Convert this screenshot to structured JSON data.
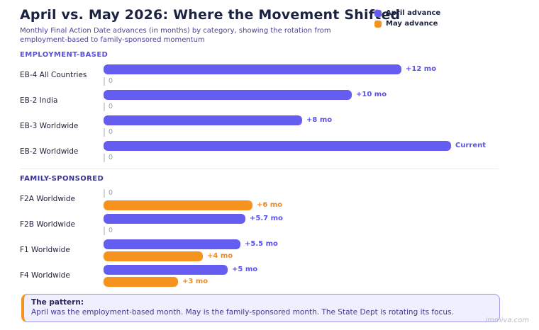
{
  "header": {
    "title": "April vs. May 2026: Where the Movement Shifted",
    "subtitle_line1": "Monthly Final Action Date advances (in months) by category, showing the rotation from",
    "subtitle_line2": "employment-based to family-sponsored momentum"
  },
  "legend": [
    {
      "label": "April advance",
      "color": "#655CF0"
    },
    {
      "label": "May advance",
      "color": "#F6921E"
    }
  ],
  "colors": {
    "april_bar": "#655CF0",
    "may_bar": "#F6921E",
    "april_value_text": "#5B51E8",
    "may_value_text": "#F6881C",
    "zero_text": "#9AA0A8",
    "title_text": "#1B2240",
    "subtitle_text": "#4A4499",
    "employment_section_text": "#5A4FE0",
    "family_section_text": "#3A338F",
    "callout_background": "#F0EFFE",
    "callout_border": "#A29DE8",
    "callout_accent": "#F6921E"
  },
  "chart_data": {
    "type": "bar",
    "orientation": "horizontal",
    "value_unit": "months",
    "series": [
      "April advance",
      "May advance"
    ],
    "legend_position": "top-right",
    "grid": false,
    "sections": [
      {
        "label": "EMPLOYMENT-BASED",
        "rows": [
          {
            "category": "EB-4 All Countries",
            "april": {
              "value": 12,
              "label": "+12 mo"
            },
            "may": {
              "value": 0,
              "label": "0"
            }
          },
          {
            "category": "EB-2 India",
            "april": {
              "value": 10,
              "label": "+10 mo"
            },
            "may": {
              "value": 0,
              "label": "0"
            }
          },
          {
            "category": "EB-3 Worldwide",
            "april": {
              "value": 8,
              "label": "+8 mo"
            },
            "may": {
              "value": 0,
              "label": "0"
            }
          },
          {
            "category": "EB-2 Worldwide",
            "april": {
              "value": "Current",
              "units": 14,
              "label": "Current"
            },
            "may": {
              "value": 0,
              "label": "0"
            }
          }
        ]
      },
      {
        "label": "FAMILY-SPONSORED",
        "rows": [
          {
            "category": "F2A Worldwide",
            "april": {
              "value": 0,
              "label": "0"
            },
            "may": {
              "value": 6,
              "label": "+6 mo"
            }
          },
          {
            "category": "F2B Worldwide",
            "april": {
              "value": 5.7,
              "label": "+5.7 mo"
            },
            "may": {
              "value": 0,
              "label": "0"
            }
          },
          {
            "category": "F1 Worldwide",
            "april": {
              "value": 5.5,
              "label": "+5.5 mo"
            },
            "may": {
              "value": 4,
              "label": "+4 mo"
            }
          },
          {
            "category": "F4 Worldwide",
            "april": {
              "value": 5,
              "label": "+5 mo"
            },
            "may": {
              "value": 3,
              "label": "+3 mo"
            }
          }
        ]
      }
    ]
  },
  "callout": {
    "title": "The pattern:",
    "body": "April was the employment-based month. May is the family-sponsored month. The State Dept is rotating its focus."
  },
  "footer": {
    "watermark": "immiva.com"
  }
}
